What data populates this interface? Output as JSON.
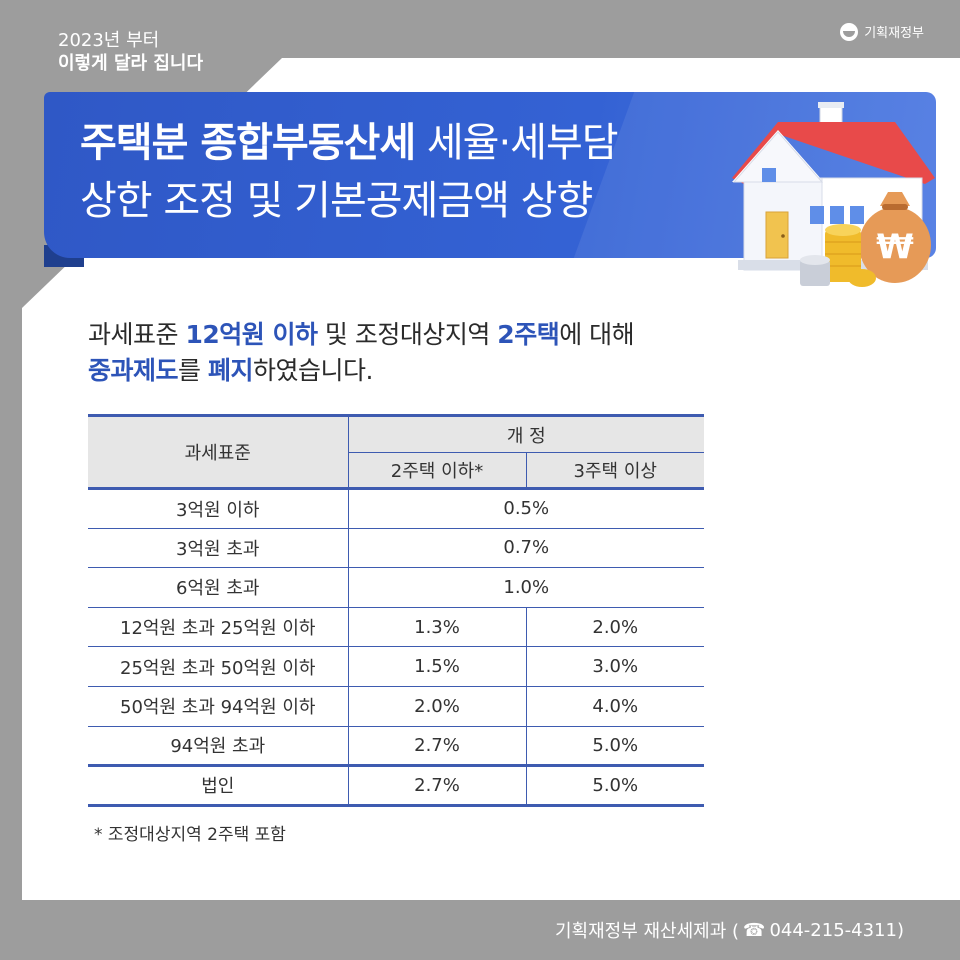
{
  "header": {
    "line1": "2023년 부터",
    "line2": "이렇게 달라 집니다",
    "logo_text": "기획재정부"
  },
  "banner": {
    "line1_bold": "주택분 종합부동산세",
    "line1_rest": " 세율·세부담",
    "line2": "상한 조정 및 기본공제금액 상향",
    "illustration_icons": [
      "house-icon",
      "coin-stack-icon",
      "money-bag-icon"
    ],
    "money_bag_symbol": "₩"
  },
  "intro": {
    "p1": "과세표준 ",
    "p2": "12억원 이하",
    "p3": " 및 조정대상지역 ",
    "p4": "2주택",
    "p5": "에 대해",
    "p6": "중과제도",
    "p7": "를 ",
    "p8": "폐지",
    "p9": "하였습니다."
  },
  "table": {
    "col_base": "과세표준",
    "col_group": "개 정",
    "col_sub1": "2주택 이하*",
    "col_sub2": "3주택 이상",
    "rows": [
      {
        "base": "3억원 이하",
        "merged": "0.5%"
      },
      {
        "base": "3억원 초과",
        "merged": "0.7%"
      },
      {
        "base": "6억원 초과",
        "merged": "1.0%"
      },
      {
        "base": "12억원 초과 25억원 이하",
        "two": "1.3%",
        "three": "2.0%"
      },
      {
        "base": "25억원 초과 50억원 이하",
        "two": "1.5%",
        "three": "3.0%"
      },
      {
        "base": "50억원 초과 94억원 이하",
        "two": "2.0%",
        "three": "4.0%"
      },
      {
        "base": "94억원 초과",
        "two": "2.7%",
        "three": "5.0%"
      },
      {
        "base": "법인",
        "two": "2.7%",
        "three": "5.0%"
      }
    ]
  },
  "note": "* 조정대상지역 2주택 포함",
  "footer": {
    "dept": "기획재정부 재산세제과 (",
    "phone_icon": "☎",
    "phone": " 044-215-4311)"
  },
  "colors": {
    "accent": "#2d54b8",
    "banner": "#3462d4",
    "background": "#9d9d9d"
  }
}
